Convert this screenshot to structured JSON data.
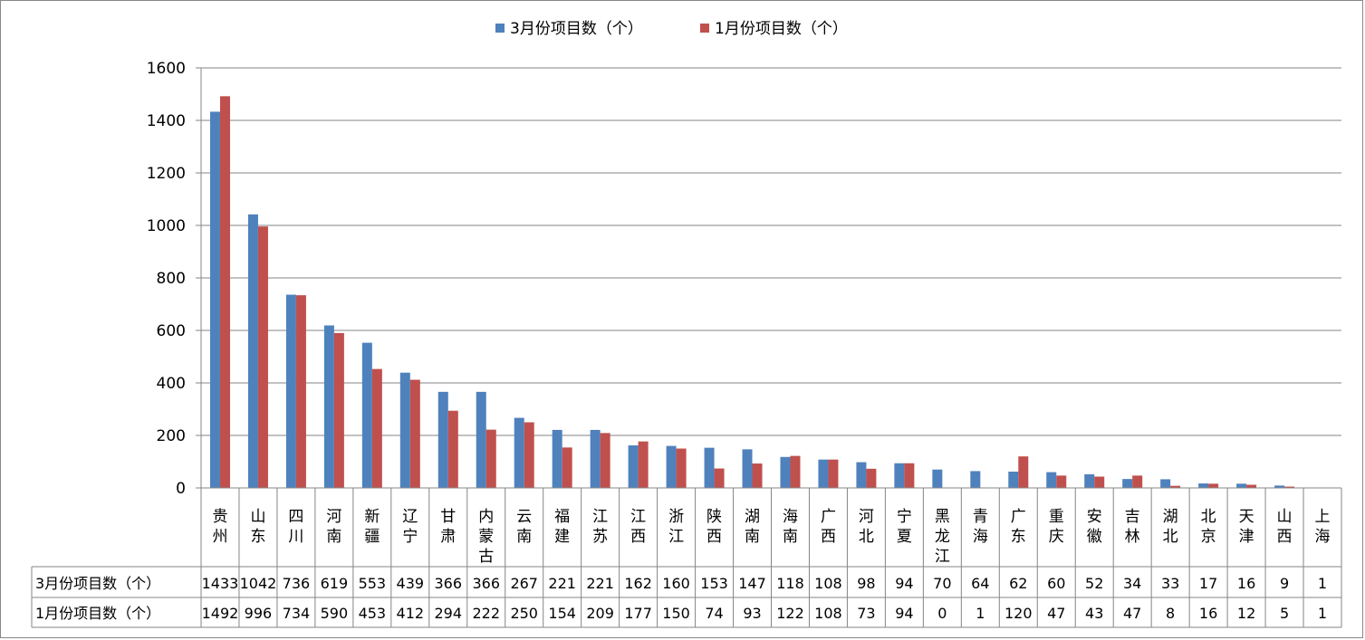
{
  "chart_data": {
    "type": "bar",
    "title": "",
    "xlabel": "",
    "ylabel": "",
    "ylim": [
      0,
      1600
    ],
    "yticks": [
      0,
      200,
      400,
      600,
      800,
      1000,
      1200,
      1400,
      1600
    ],
    "grid": true,
    "legend_position": "top-center",
    "categories": [
      "贵州",
      "山东",
      "四川",
      "河南",
      "新疆",
      "辽宁",
      "甘肃",
      "内蒙古",
      "云南",
      "福建",
      "江苏",
      "江西",
      "浙江",
      "陕西",
      "湖南",
      "海南",
      "广西",
      "河北",
      "宁夏",
      "黑龙江",
      "青海",
      "广东",
      "重庆",
      "安徽",
      "吉林",
      "湖北",
      "北京",
      "天津",
      "山西",
      "上海"
    ],
    "series": [
      {
        "name": "3月份项目数（个）",
        "color": "#4F81BD",
        "values": [
          1433,
          1042,
          736,
          619,
          553,
          439,
          366,
          366,
          267,
          221,
          221,
          162,
          160,
          153,
          147,
          118,
          108,
          98,
          94,
          70,
          64,
          62,
          60,
          52,
          34,
          33,
          17,
          16,
          9,
          1
        ]
      },
      {
        "name": "1月份项目数（个）",
        "color": "#C0504D",
        "values": [
          1492,
          996,
          734,
          590,
          453,
          412,
          294,
          222,
          250,
          154,
          209,
          177,
          150,
          74,
          93,
          122,
          108,
          73,
          94,
          0,
          1,
          120,
          47,
          43,
          47,
          8,
          16,
          12,
          5,
          1
        ]
      }
    ],
    "data_table": true
  }
}
